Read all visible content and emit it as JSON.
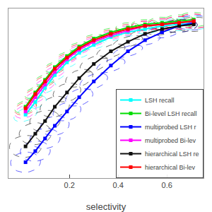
{
  "chart_data": {
    "type": "line",
    "xlabel": "selectivity",
    "x": [
      0.02,
      0.06,
      0.1,
      0.14,
      0.19,
      0.24,
      0.3,
      0.37,
      0.44,
      0.51,
      0.58,
      0.65,
      0.71
    ],
    "series": [
      {
        "name": "LSH recall",
        "color": "cyan",
        "values": [
          0.05,
          0.13,
          0.22,
          0.3,
          0.38,
          0.44,
          0.49,
          0.54,
          0.57,
          0.59,
          0.61,
          0.62,
          0.63
        ],
        "ellipse_widths": [
          0.11,
          0.1,
          0.1,
          0.09,
          0.09,
          0.09,
          0.09,
          0.09,
          0.1,
          0.11,
          0.12,
          0.13,
          0.14
        ],
        "ellipse_heights": [
          0.07,
          0.07,
          0.06,
          0.06,
          0.06,
          0.06,
          0.05,
          0.05,
          0.05,
          0.06,
          0.07,
          0.08,
          0.09
        ],
        "ellipse_angles": [
          40,
          38,
          35,
          32,
          28,
          22,
          16,
          10,
          6,
          4,
          3,
          2,
          1
        ]
      },
      {
        "name": "Bi-level LSH recall",
        "color": "#00dd00",
        "values": [
          0.1,
          0.19,
          0.27,
          0.35,
          0.42,
          0.48,
          0.53,
          0.57,
          0.6,
          0.62,
          0.63,
          0.64,
          0.65
        ],
        "ellipse_widths": [
          0.1,
          0.1,
          0.09,
          0.09,
          0.09,
          0.09,
          0.09,
          0.09,
          0.1,
          0.11,
          0.12,
          0.13,
          0.14
        ],
        "ellipse_heights": [
          0.07,
          0.06,
          0.06,
          0.06,
          0.05,
          0.05,
          0.05,
          0.05,
          0.06,
          0.06,
          0.07,
          0.08,
          0.09
        ],
        "ellipse_angles": [
          38,
          36,
          33,
          30,
          26,
          20,
          14,
          9,
          5,
          3,
          2,
          1,
          0
        ]
      },
      {
        "name": "multiprobed LSH r",
        "color": "blue",
        "values": [
          -0.25,
          -0.18,
          -0.1,
          -0.02,
          0.07,
          0.16,
          0.26,
          0.36,
          0.45,
          0.52,
          0.57,
          0.61,
          0.63
        ],
        "ellipse_widths": [
          0.13,
          0.13,
          0.13,
          0.13,
          0.13,
          0.13,
          0.13,
          0.13,
          0.13,
          0.13,
          0.14,
          0.15,
          0.16
        ],
        "ellipse_heights": [
          0.12,
          0.12,
          0.12,
          0.11,
          0.1,
          0.09,
          0.08,
          0.07,
          0.06,
          0.06,
          0.07,
          0.08,
          0.09
        ],
        "ellipse_angles": [
          58,
          56,
          54,
          52,
          48,
          44,
          38,
          32,
          25,
          18,
          12,
          7,
          3
        ]
      },
      {
        "name": "multiprobed Bi-lev",
        "color": "magenta",
        "values": [
          0.07,
          0.16,
          0.24,
          0.32,
          0.4,
          0.46,
          0.51,
          0.55,
          0.58,
          0.61,
          0.62,
          0.63,
          0.64
        ],
        "ellipse_widths": [
          0.1,
          0.1,
          0.09,
          0.09,
          0.09,
          0.09,
          0.09,
          0.09,
          0.1,
          0.11,
          0.12,
          0.13,
          0.14
        ],
        "ellipse_heights": [
          0.07,
          0.06,
          0.06,
          0.06,
          0.05,
          0.05,
          0.05,
          0.05,
          0.06,
          0.06,
          0.07,
          0.08,
          0.09
        ],
        "ellipse_angles": [
          42,
          40,
          37,
          34,
          29,
          23,
          16,
          10,
          6,
          3,
          2,
          1,
          0
        ]
      },
      {
        "name": "hierarchical LSH re",
        "color": "#111111",
        "values": [
          -0.15,
          -0.07,
          0.01,
          0.1,
          0.19,
          0.28,
          0.37,
          0.45,
          0.51,
          0.56,
          0.59,
          0.61,
          0.62
        ],
        "ellipse_widths": [
          0.14,
          0.14,
          0.14,
          0.14,
          0.13,
          0.13,
          0.13,
          0.13,
          0.13,
          0.13,
          0.14,
          0.15,
          0.16
        ],
        "ellipse_heights": [
          0.13,
          0.13,
          0.12,
          0.11,
          0.1,
          0.09,
          0.08,
          0.07,
          0.06,
          0.06,
          0.07,
          0.08,
          0.09
        ],
        "ellipse_angles": [
          62,
          60,
          58,
          55,
          50,
          45,
          39,
          32,
          25,
          18,
          12,
          7,
          3
        ]
      },
      {
        "name": "hierarchical Bi-lev",
        "color": "red",
        "values": [
          0.09,
          0.18,
          0.26,
          0.34,
          0.41,
          0.47,
          0.52,
          0.56,
          0.59,
          0.61,
          0.62,
          0.63,
          0.64
        ],
        "ellipse_widths": [
          0.1,
          0.1,
          0.09,
          0.09,
          0.09,
          0.09,
          0.09,
          0.09,
          0.1,
          0.11,
          0.12,
          0.13,
          0.14
        ],
        "ellipse_heights": [
          0.07,
          0.06,
          0.06,
          0.06,
          0.05,
          0.05,
          0.05,
          0.05,
          0.06,
          0.06,
          0.07,
          0.08,
          0.09
        ],
        "ellipse_angles": [
          40,
          38,
          35,
          32,
          27,
          21,
          15,
          9,
          5,
          3,
          2,
          1,
          0
        ]
      }
    ],
    "marker": "square",
    "xlim": [
      -0.05,
      0.75
    ],
    "ylim": [
      -0.35,
      0.72
    ],
    "xticks": [
      0.2,
      0.4,
      0.6
    ],
    "yticks": [],
    "tick_labels": "x",
    "grid": false,
    "legend": "lower right"
  }
}
